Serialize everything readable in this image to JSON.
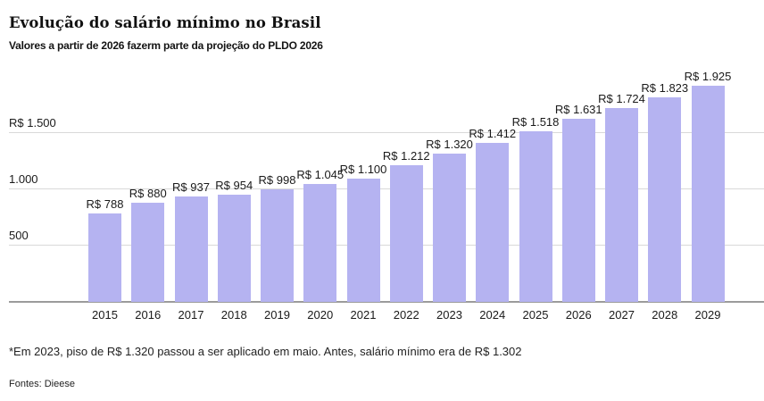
{
  "chart_data": {
    "type": "bar",
    "title": "Evolução do salário mínimo no Brasil",
    "subtitle": "Valores a partir de 2026 fazerm parte da projeção do PLDO 2026",
    "categories": [
      "2015",
      "2016",
      "2017",
      "2018",
      "2019",
      "2020",
      "2021",
      "2022",
      "2023",
      "2024",
      "2025",
      "2026",
      "2027",
      "2028",
      "2029"
    ],
    "values": [
      788,
      880,
      937,
      954,
      998,
      1045,
      1100,
      1212,
      1320,
      1412,
      1518,
      1631,
      1724,
      1823,
      1925
    ],
    "bar_labels": [
      "R$ 788",
      "R$ 880",
      "R$ 937",
      "R$ 954",
      "R$ 998",
      "R$ 1.045",
      "R$ 1.100",
      "R$ 1.212",
      "R$ 1.320",
      "R$ 1.412",
      "R$ 1.518",
      "R$ 1.631",
      "R$ 1.724",
      "R$ 1.823",
      "R$ 1.925"
    ],
    "xlabel": "",
    "ylabel": "",
    "ylim": [
      0,
      2050
    ],
    "yticks": [
      {
        "value": 500,
        "label": "500"
      },
      {
        "value": 1000,
        "label": "1.000"
      },
      {
        "value": 1500,
        "label": "R$ 1.500"
      }
    ],
    "grid": "horizontal",
    "legend": "none",
    "bar_color": "#b5b3f1"
  },
  "colors": {
    "bar": "#b5b3f1",
    "gridline": "#d9d9d9",
    "axis_line": "#9b9b9b",
    "text": "#1a1a1a"
  },
  "notes": {
    "footnote": "*Em 2023, piso de R$ 1.320 passou a ser aplicado em maio. Antes, salário mínimo era de R$ 1.302",
    "source": "Fontes: Dieese"
  }
}
